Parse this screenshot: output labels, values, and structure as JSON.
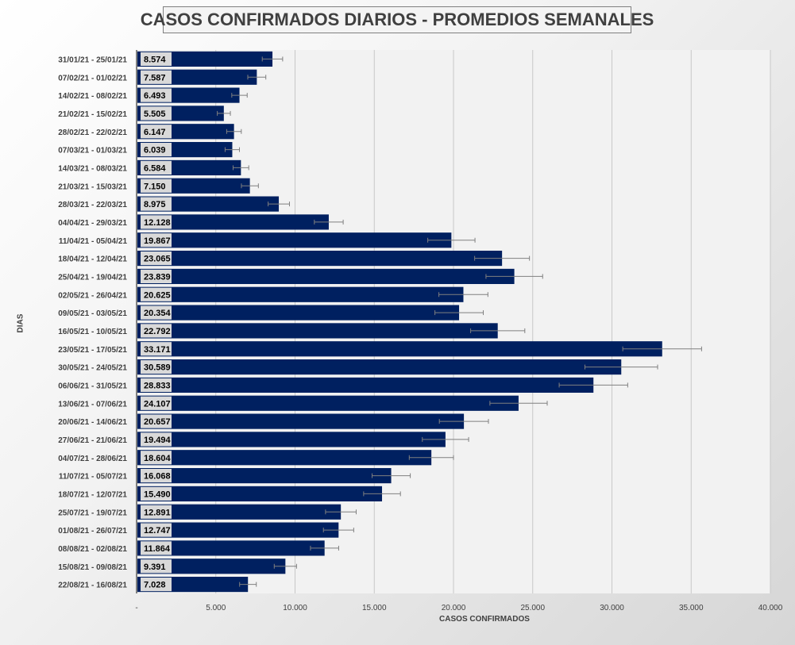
{
  "chart_data": {
    "type": "bar",
    "orientation": "horizontal",
    "title": "CASOS CONFIRMADOS DIARIOS - PROMEDIOS SEMANALES",
    "xlabel": "CASOS CONFIRMADOS",
    "ylabel": "DIAS",
    "xlim": [
      0,
      40000
    ],
    "xticks": [
      "-",
      "5.000",
      "10.000",
      "15.000",
      "20.000",
      "25.000",
      "30.000",
      "35.000",
      "40.000"
    ],
    "grid": true,
    "error_bars": true,
    "bar_color": "#002060",
    "categories": [
      "31/01/21 - 25/01/21",
      "07/02/21 - 01/02/21",
      "14/02/21 - 08/02/21",
      "21/02/21 - 15/02/21",
      "28/02/21 - 22/02/21",
      "07/03/21 - 01/03/21",
      "14/03/21 - 08/03/21",
      "21/03/21 - 15/03/21",
      "28/03/21 - 22/03/21",
      "04/04/21 - 29/03/21",
      "11/04/21 - 05/04/21",
      "18/04/21 - 12/04/21",
      "25/04/21 - 19/04/21",
      "02/05/21 - 26/04/21",
      "09/05/21 - 03/05/21",
      "16/05/21 - 10/05/21",
      "23/05/21 - 17/05/21",
      "30/05/21 - 24/05/21",
      "06/06/21 - 31/05/21",
      "13/06/21 - 07/06/21",
      "20/06/21 - 14/06/21",
      "27/06/21 - 21/06/21",
      "04/07/21 - 28/06/21",
      "11/07/21 - 05/07/21",
      "18/07/21 - 12/07/21",
      "25/07/21 - 19/07/21",
      "01/08/21 - 26/07/21",
      "08/08/21 - 02/08/21",
      "15/08/21 - 09/08/21",
      "22/08/21 - 16/08/21"
    ],
    "values": [
      8574,
      7587,
      6493,
      5505,
      6147,
      6039,
      6584,
      7150,
      8975,
      12128,
      19867,
      23065,
      23839,
      20625,
      20354,
      22792,
      33171,
      30589,
      28833,
      24107,
      20657,
      19494,
      18604,
      16068,
      15490,
      12891,
      12747,
      11864,
      9391,
      7028
    ],
    "value_labels": [
      "8.574",
      "7.587",
      "6.493",
      "5.505",
      "6.147",
      "6.039",
      "6.584",
      "7.150",
      "8.975",
      "12.128",
      "19.867",
      "23.065",
      "23.839",
      "20.625",
      "20.354",
      "22.792",
      "33.171",
      "30.589",
      "28.833",
      "24.107",
      "20.657",
      "19.494",
      "18.604",
      "16.068",
      "15.490",
      "12.891",
      "12.747",
      "11.864",
      "9.391",
      "7.028"
    ]
  }
}
